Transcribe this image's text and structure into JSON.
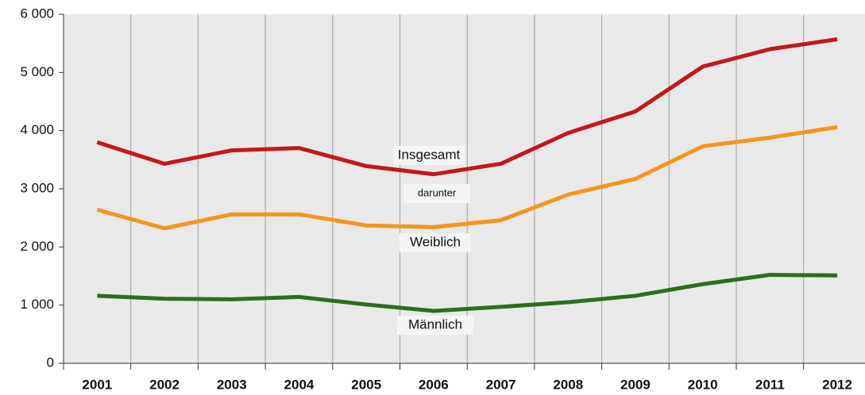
{
  "chart_data": {
    "type": "line",
    "categories": [
      "2001",
      "2002",
      "2003",
      "2004",
      "2005",
      "2006",
      "2007",
      "2008",
      "2009",
      "2010",
      "2011",
      "2012"
    ],
    "series": [
      {
        "name": "Insgesamt",
        "color": "#c4161c",
        "values": [
          3800,
          3430,
          3660,
          3700,
          3390,
          3250,
          3430,
          3960,
          4330,
          5100,
          5400,
          5570
        ]
      },
      {
        "name": "Weiblich",
        "color": "#f7941d",
        "values": [
          2640,
          2320,
          2560,
          2560,
          2370,
          2340,
          2460,
          2900,
          3170,
          3730,
          3880,
          4060
        ]
      },
      {
        "name": "Männlich",
        "color": "#2e6b1f",
        "values": [
          1160,
          1110,
          1100,
          1140,
          1010,
          900,
          970,
          1050,
          1160,
          1360,
          1520,
          1510
        ]
      }
    ],
    "annotations": [
      "darunter"
    ],
    "ylim": [
      0,
      6000
    ],
    "yticks": [
      0,
      {
        "value": 1000,
        "label": "1 000"
      },
      {
        "value": 2000,
        "label": "2 000"
      },
      {
        "value": 3000,
        "label": "3 000"
      },
      {
        "value": 4000,
        "label": "4 000"
      },
      {
        "value": 5000,
        "label": "5 000"
      },
      {
        "value": 6000,
        "label": "6 000"
      }
    ],
    "grid": "vertical"
  }
}
